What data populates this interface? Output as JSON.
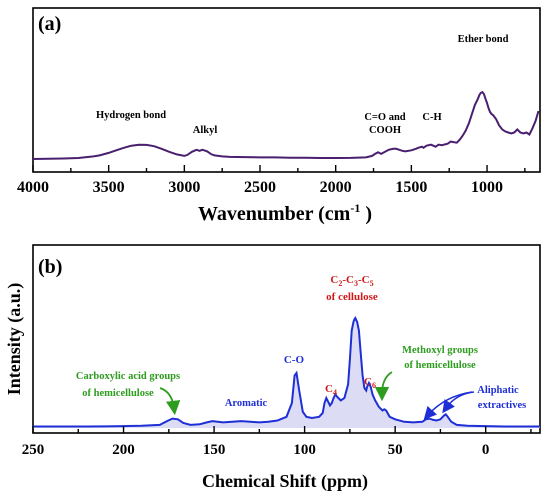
{
  "chart_data": [
    {
      "type": "line",
      "panel_label": "(a)",
      "xlabel": "Wavenumber (cm",
      "xlabel_sup": "-1",
      "xlabel_close": " )",
      "ylabel": "",
      "xlim": [
        4000,
        650
      ],
      "x_reversed": true,
      "x_ticks": [
        4000,
        3500,
        3000,
        2500,
        2000,
        1500,
        1000
      ],
      "y_ticks_shown": false,
      "grid": false,
      "color": "#4b1f6f",
      "series": [
        {
          "x": [
            4000,
            3900,
            3800,
            3700,
            3600,
            3560,
            3500,
            3450,
            3400,
            3350,
            3300,
            3250,
            3200,
            3150,
            3100,
            3050,
            3000,
            2980,
            2950,
            2920,
            2900,
            2880,
            2850,
            2820,
            2800,
            2750,
            2700,
            2600,
            2500,
            2400,
            2300,
            2200,
            2100,
            2000,
            1900,
            1800,
            1760,
            1740,
            1720,
            1700,
            1680,
            1650,
            1620,
            1600,
            1580,
            1560,
            1540,
            1500,
            1470,
            1455,
            1430,
            1420,
            1400,
            1370,
            1340,
            1320,
            1300,
            1260,
            1240,
            1200,
            1180,
            1160,
            1140,
            1120,
            1100,
            1080,
            1060,
            1050,
            1040,
            1030,
            1020,
            1010,
            1000,
            990,
            980,
            970,
            960,
            940,
            920,
            900,
            880,
            860,
            840,
            820,
            800,
            780,
            760,
            740,
            720,
            700,
            680,
            660
          ],
          "y": [
            0.01,
            0.012,
            0.015,
            0.02,
            0.035,
            0.045,
            0.07,
            0.095,
            0.12,
            0.14,
            0.15,
            0.148,
            0.135,
            0.11,
            0.08,
            0.055,
            0.04,
            0.05,
            0.08,
            0.1,
            0.09,
            0.1,
            0.085,
            0.055,
            0.045,
            0.035,
            0.03,
            0.028,
            0.025,
            0.025,
            0.023,
            0.022,
            0.02,
            0.02,
            0.021,
            0.025,
            0.04,
            0.06,
            0.075,
            0.06,
            0.075,
            0.1,
            0.11,
            0.11,
            0.1,
            0.09,
            0.085,
            0.095,
            0.11,
            0.12,
            0.13,
            0.12,
            0.14,
            0.15,
            0.13,
            0.15,
            0.145,
            0.16,
            0.18,
            0.17,
            0.2,
            0.24,
            0.29,
            0.36,
            0.45,
            0.54,
            0.6,
            0.64,
            0.66,
            0.665,
            0.645,
            0.6,
            0.56,
            0.51,
            0.47,
            0.45,
            0.44,
            0.4,
            0.34,
            0.3,
            0.28,
            0.27,
            0.26,
            0.27,
            0.3,
            0.27,
            0.26,
            0.27,
            0.25,
            0.31,
            0.38,
            0.48
          ]
        }
      ],
      "annotations": [
        {
          "text": "Hydrogen bond",
          "x": 3300
        },
        {
          "text": "Alkyl",
          "x": 2880
        },
        {
          "text": "C=O and",
          "x": 1620
        },
        {
          "text": "COOH",
          "x": 1620
        },
        {
          "text": "C-H",
          "x": 1360
        },
        {
          "text": "Ether bond",
          "x": 1030
        }
      ]
    },
    {
      "type": "area",
      "panel_label": "(b)",
      "xlabel": "Chemical Shift (ppm)",
      "ylabel": "Intensity (a.u.)",
      "xlim": [
        250,
        -30
      ],
      "x_reversed": true,
      "x_ticks": [
        250,
        200,
        150,
        100,
        50,
        0
      ],
      "y_ticks_shown": false,
      "grid": false,
      "color": "#1f2fd6",
      "fill": "#dcdcf5",
      "series": [
        {
          "x": [
            250,
            240,
            230,
            220,
            210,
            200,
            190,
            180,
            176,
            173,
            170,
            167,
            163,
            158,
            154,
            151,
            148,
            145,
            140,
            135,
            130,
            125,
            120,
            115,
            110,
            107,
            105.5,
            104.5,
            103,
            101,
            99,
            96,
            92,
            90,
            89,
            88,
            86,
            85,
            84,
            83,
            82,
            80,
            78,
            76,
            75,
            74,
            73,
            72.5,
            72,
            71,
            70,
            69,
            68,
            67,
            66,
            65.5,
            64.5,
            63.5,
            62.5,
            61,
            59,
            57,
            56,
            55,
            53,
            50,
            45,
            40,
            35,
            33,
            31,
            29,
            27,
            25,
            23,
            22,
            21,
            19,
            16,
            10,
            0,
            -10,
            -20,
            -30
          ],
          "y": [
            0.012,
            0.012,
            0.012,
            0.012,
            0.013,
            0.015,
            0.018,
            0.025,
            0.055,
            0.075,
            0.07,
            0.04,
            0.025,
            0.03,
            0.045,
            0.055,
            0.05,
            0.045,
            0.05,
            0.055,
            0.05,
            0.045,
            0.05,
            0.06,
            0.09,
            0.2,
            0.42,
            0.44,
            0.3,
            0.13,
            0.09,
            0.08,
            0.09,
            0.12,
            0.2,
            0.24,
            0.18,
            0.2,
            0.24,
            0.27,
            0.25,
            0.22,
            0.24,
            0.35,
            0.55,
            0.78,
            0.85,
            0.87,
            0.88,
            0.85,
            0.78,
            0.6,
            0.42,
            0.32,
            0.3,
            0.33,
            0.36,
            0.33,
            0.27,
            0.22,
            0.17,
            0.14,
            0.15,
            0.14,
            0.09,
            0.07,
            0.05,
            0.045,
            0.05,
            0.07,
            0.075,
            0.065,
            0.06,
            0.07,
            0.1,
            0.11,
            0.09,
            0.05,
            0.025,
            0.018,
            0.015,
            0.012,
            0.012,
            0.012
          ]
        }
      ],
      "annotations": [
        {
          "text": "Carboxylic acid groups",
          "color": "#2e9c1f"
        },
        {
          "text": "of hemicellulose",
          "color": "#2e9c1f"
        },
        {
          "text": "Aromatic",
          "color": "#1f2fd6"
        },
        {
          "text": "C-O",
          "color": "#1f2fd6"
        },
        {
          "text": "C",
          "sub": "4",
          "color": "#d01818"
        },
        {
          "text": "C",
          "sub": "6",
          "color": "#d01818"
        },
        {
          "text": "of cellulose",
          "color": "#d01818"
        },
        {
          "text": "Methoxyl groups",
          "color": "#2e9c1f"
        },
        {
          "text": "of hemicellulose",
          "color": "#2e9c1f"
        },
        {
          "text": "Aliphatic",
          "color": "#1f2fd6"
        },
        {
          "text": "extractives",
          "color": "#1f2fd6"
        }
      ],
      "title_parts": [
        "C",
        "2",
        "-C",
        "3",
        "-C",
        "5"
      ]
    }
  ]
}
